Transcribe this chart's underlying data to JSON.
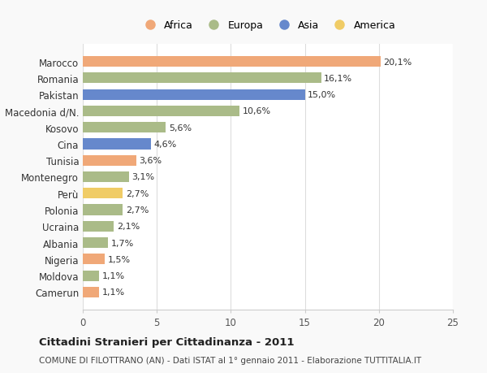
{
  "countries": [
    "Marocco",
    "Romania",
    "Pakistan",
    "Macedonia d/N.",
    "Kosovo",
    "Cina",
    "Tunisia",
    "Montenegro",
    "Perù",
    "Polonia",
    "Ucraina",
    "Albania",
    "Nigeria",
    "Moldova",
    "Camerun"
  ],
  "values": [
    20.1,
    16.1,
    15.0,
    10.6,
    5.6,
    4.6,
    3.6,
    3.1,
    2.7,
    2.7,
    2.1,
    1.7,
    1.5,
    1.1,
    1.1
  ],
  "labels": [
    "20,1%",
    "16,1%",
    "15,0%",
    "10,6%",
    "5,6%",
    "4,6%",
    "3,6%",
    "3,1%",
    "2,7%",
    "2,7%",
    "2,1%",
    "1,7%",
    "1,5%",
    "1,1%",
    "1,1%"
  ],
  "continents": [
    "Africa",
    "Europa",
    "Asia",
    "Europa",
    "Europa",
    "Asia",
    "Africa",
    "Europa",
    "America",
    "Europa",
    "Europa",
    "Europa",
    "Africa",
    "Europa",
    "Africa"
  ],
  "colors": {
    "Africa": "#F0A878",
    "Europa": "#AABB88",
    "Asia": "#6688CC",
    "America": "#F0CC66"
  },
  "legend_order": [
    "Africa",
    "Europa",
    "Asia",
    "America"
  ],
  "title": "Cittadini Stranieri per Cittadinanza - 2011",
  "subtitle": "COMUNE DI FILOTTRANO (AN) - Dati ISTAT al 1° gennaio 2011 - Elaborazione TUTTITALIA.IT",
  "xlim": [
    0,
    25
  ],
  "xticks": [
    0,
    5,
    10,
    15,
    20,
    25
  ],
  "background_color": "#f9f9f9",
  "bar_background": "#ffffff"
}
